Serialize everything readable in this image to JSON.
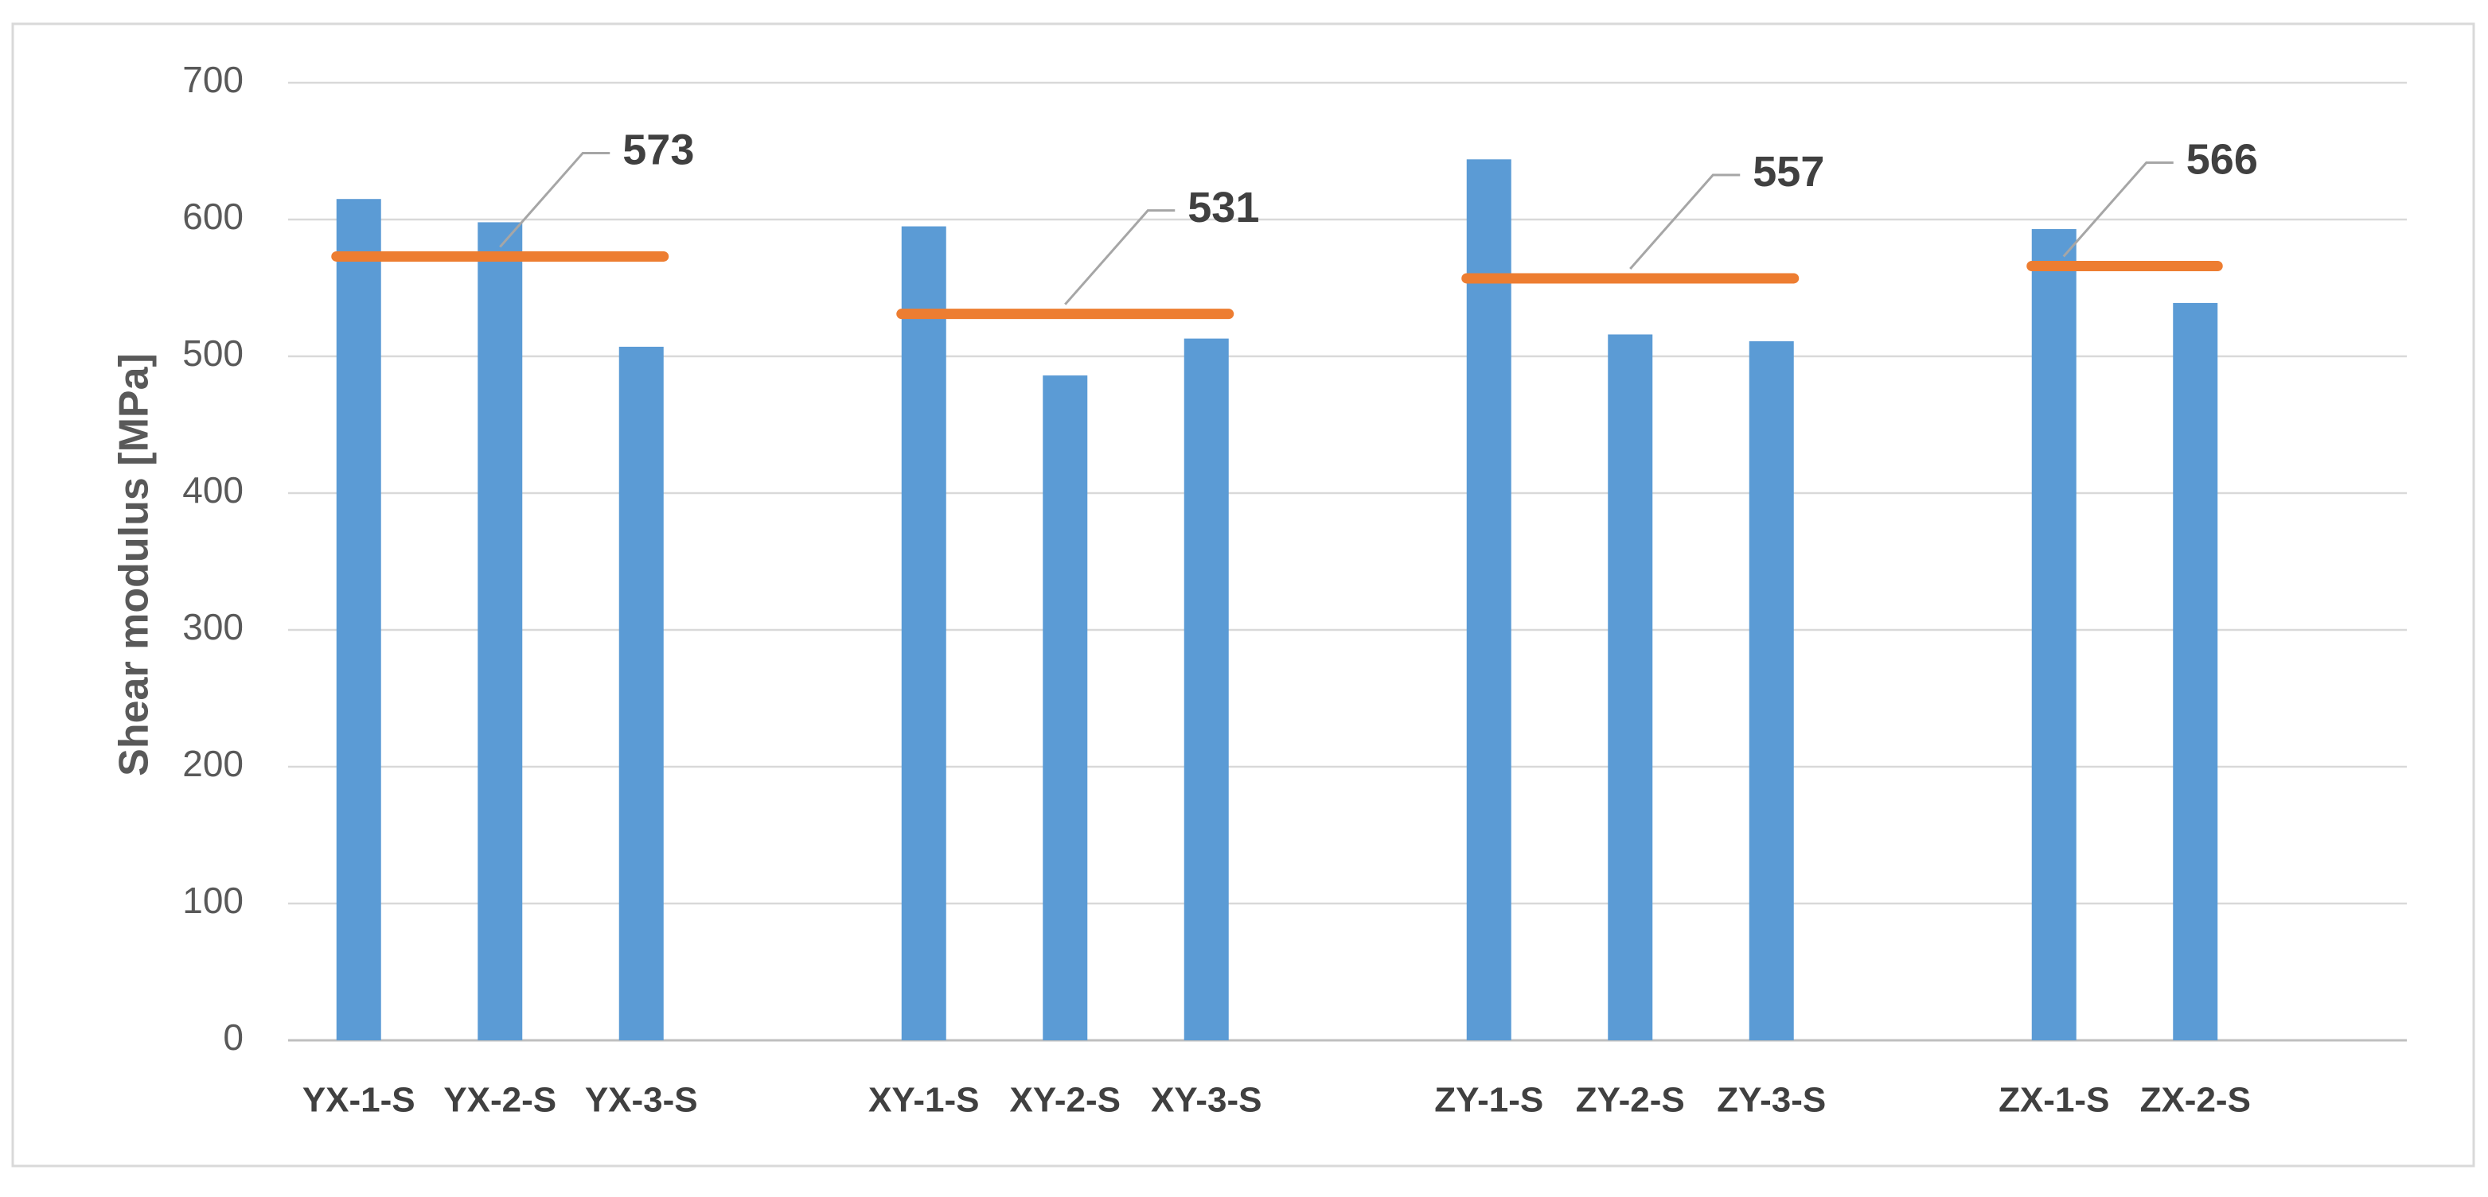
{
  "chart_data": {
    "type": "bar",
    "title": "",
    "xlabel": "",
    "ylabel": "Shear modulus [MPa]",
    "ylim": [
      0,
      700
    ],
    "yticks": [
      0,
      100,
      200,
      300,
      400,
      500,
      600,
      700
    ],
    "grid": true,
    "bar_color": "#5b9bd5",
    "mean_line_color": "#ed7d31",
    "groups": [
      {
        "name": "YX",
        "categories": [
          "YX-1-S",
          "YX-2-S",
          "YX-3-S"
        ],
        "values": [
          615,
          598,
          507
        ],
        "mean": 573,
        "mean_label": "573"
      },
      {
        "name": "XY",
        "categories": [
          "XY-1-S",
          "XY-2-S",
          "XY-3-S"
        ],
        "values": [
          595,
          486,
          513
        ],
        "mean": 531,
        "mean_label": "531"
      },
      {
        "name": "ZY",
        "categories": [
          "ZY-1-S",
          "ZY-2-S",
          "ZY-3-S"
        ],
        "values": [
          644,
          516,
          511
        ],
        "mean": 557,
        "mean_label": "557"
      },
      {
        "name": "ZX",
        "categories": [
          "ZX-1-S",
          "ZX-2-S"
        ],
        "values": [
          593,
          539
        ],
        "mean": 566,
        "mean_label": "566"
      }
    ]
  }
}
